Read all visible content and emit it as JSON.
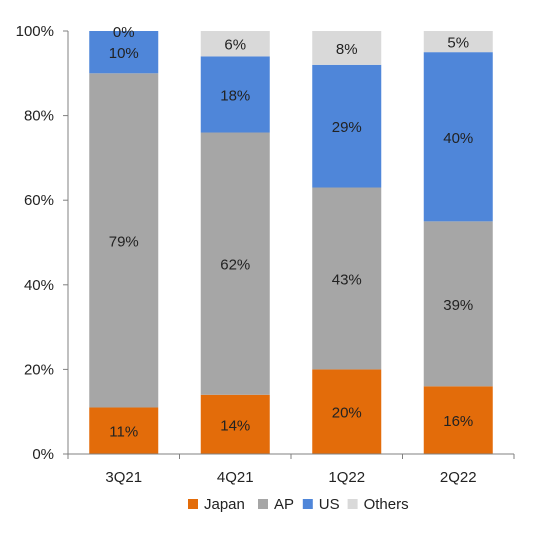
{
  "chart_data": {
    "type": "bar",
    "stacked": true,
    "categories": [
      "3Q21",
      "4Q21",
      "1Q22",
      "2Q22"
    ],
    "series": [
      {
        "name": "Japan",
        "color": "#E36C0A",
        "values": [
          11,
          14,
          20,
          16
        ],
        "labels": [
          "11%",
          "14%",
          "20%",
          "16%"
        ]
      },
      {
        "name": "AP",
        "color": "#A6A6A6",
        "values": [
          79,
          62,
          43,
          39
        ],
        "labels": [
          "79%",
          "62%",
          "43%",
          "39%"
        ]
      },
      {
        "name": "US",
        "color": "#4F86D9",
        "values": [
          10,
          18,
          29,
          40
        ],
        "labels": [
          "10%",
          "18%",
          "29%",
          "40%"
        ]
      },
      {
        "name": "Others",
        "color": "#D9D9D9",
        "values": [
          0,
          6,
          8,
          5
        ],
        "labels": [
          "0%",
          "6%",
          "8%",
          "5%"
        ]
      }
    ],
    "ylim": [
      0,
      100
    ],
    "yticks": [
      "0%",
      "20%",
      "40%",
      "60%",
      "80%",
      "100%"
    ],
    "grid": false,
    "legend_position": "bottom"
  }
}
